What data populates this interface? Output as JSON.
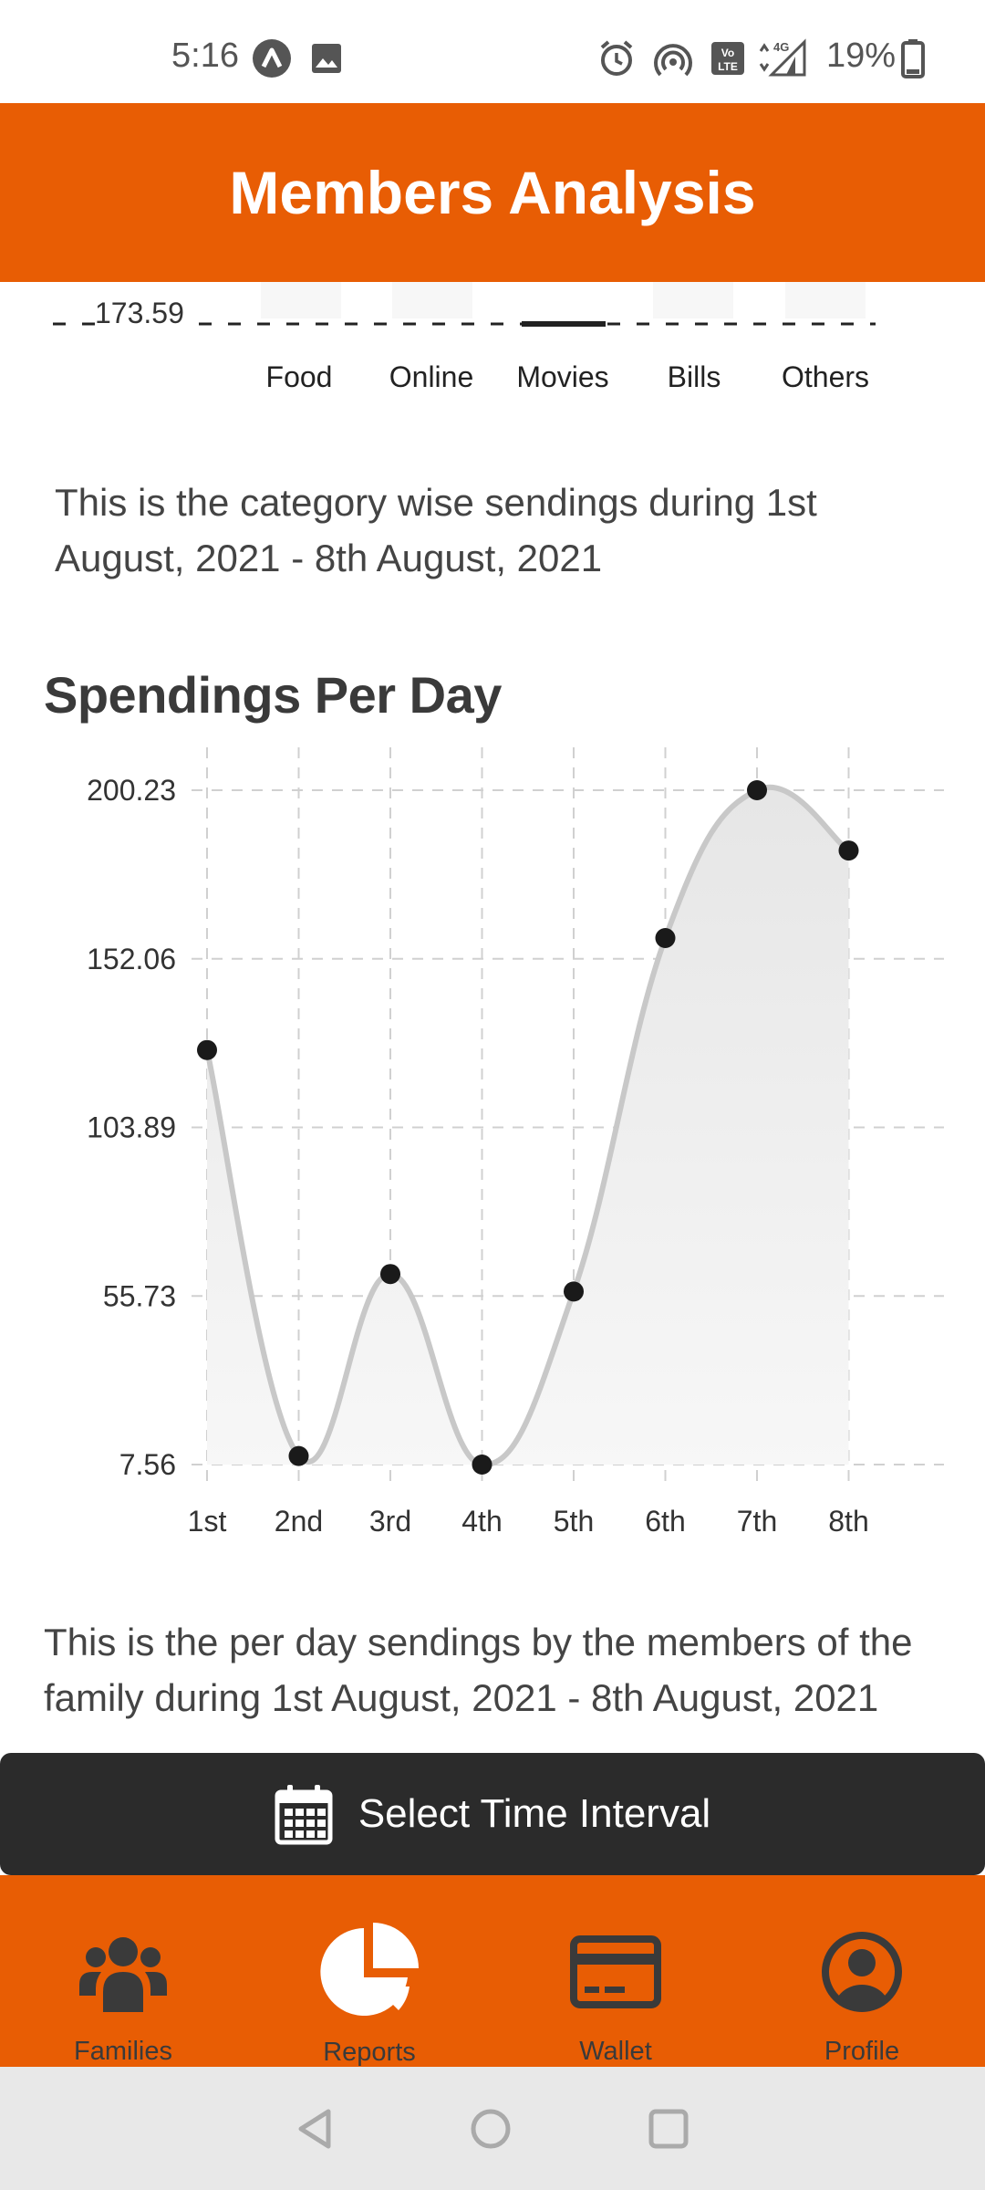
{
  "status_bar": {
    "time": "5:16",
    "battery_percent": "19%",
    "network_label": "4G"
  },
  "header": {
    "title": "Members Analysis"
  },
  "category_chart": {
    "gridline_value": "173.59",
    "categories": [
      "Food",
      "Online",
      "Movies",
      "Bills",
      "Others"
    ]
  },
  "category_description": "This is the category wise sendings during 1st August, 2021 - 8th August, 2021",
  "per_day_section": {
    "title": "Spendings Per Day"
  },
  "chart_data": {
    "type": "line",
    "categories": [
      "1st",
      "2nd",
      "3rd",
      "4th",
      "5th",
      "6th",
      "7th",
      "8th"
    ],
    "values": [
      126,
      10,
      62,
      7.56,
      57,
      158,
      200.23,
      183
    ],
    "y_ticks": [
      "200.23",
      "152.06",
      "103.89",
      "55.73",
      "7.56"
    ],
    "ylim": [
      7.56,
      200.23
    ],
    "grid": true,
    "area_fill": true
  },
  "per_day_description": "This is the per day sendings by the members of the family during 1st August, 2021 - 8th August, 2021",
  "interval_button": {
    "label": "Select Time Interval",
    "icon": "calendar-icon"
  },
  "bottom_nav": {
    "items": [
      {
        "label": "Families",
        "icon": "users-icon"
      },
      {
        "label": "Reports",
        "icon": "pie-chart-icon"
      },
      {
        "label": "Wallet",
        "icon": "credit-card-icon"
      },
      {
        "label": "Profile",
        "icon": "user-circle-icon"
      }
    ]
  },
  "colors": {
    "brand": "#e85d04",
    "dark_button": "#2b2b2b",
    "nav_icon": "#3a3a3a"
  }
}
